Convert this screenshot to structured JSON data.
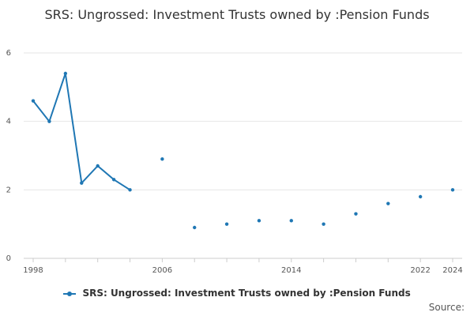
{
  "chart_data": {
    "type": "line",
    "title": "SRS: Ungrossed: Investment Trusts owned by :Pension Funds",
    "xlabel": "",
    "ylabel": "",
    "xlim": [
      1998,
      2024
    ],
    "ylim": [
      0,
      6
    ],
    "x_ticks": [
      1998,
      2006,
      2014,
      2022,
      2024
    ],
    "y_ticks": [
      0,
      2,
      4,
      6
    ],
    "grid": true,
    "legend_position": "bottom",
    "series": [
      {
        "name": "SRS: Ungrossed: Investment Trusts owned by :Pension Funds",
        "color": "#1f77b4",
        "points": [
          {
            "x": 1998,
            "y": 4.6
          },
          {
            "x": 1999,
            "y": 4.0
          },
          {
            "x": 2000,
            "y": 5.4
          },
          {
            "x": 2001,
            "y": 2.2
          },
          {
            "x": 2002,
            "y": 2.7
          },
          {
            "x": 2003,
            "y": 2.3
          },
          {
            "x": 2004,
            "y": 2.0
          },
          {
            "x": 2006,
            "y": 2.9
          },
          {
            "x": 2008,
            "y": 0.9
          },
          {
            "x": 2010,
            "y": 1.0
          },
          {
            "x": 2012,
            "y": 1.1
          },
          {
            "x": 2014,
            "y": 1.1
          },
          {
            "x": 2016,
            "y": 1.0
          },
          {
            "x": 2018,
            "y": 1.3
          },
          {
            "x": 2020,
            "y": 1.6
          },
          {
            "x": 2022,
            "y": 1.8
          },
          {
            "x": 2024,
            "y": 2.0
          }
        ]
      }
    ]
  },
  "source_label": "Source:"
}
